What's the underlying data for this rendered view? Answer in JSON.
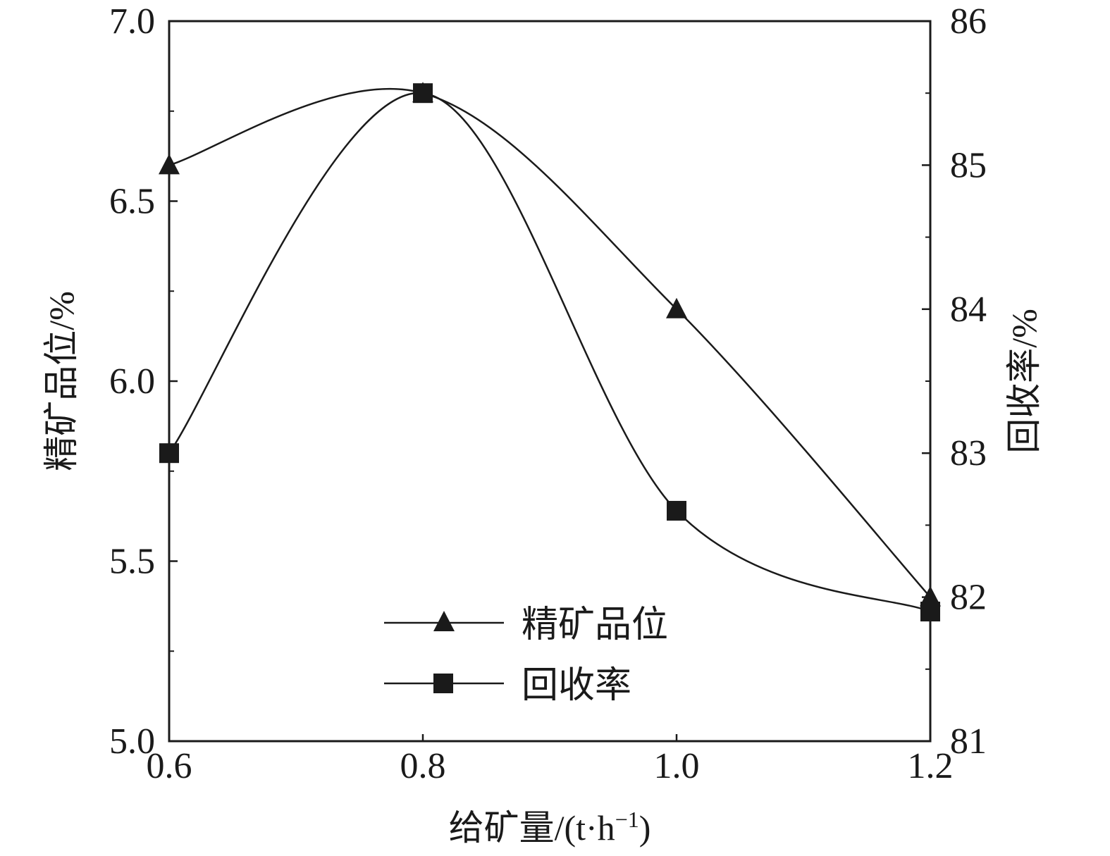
{
  "chart_data": {
    "type": "line",
    "x": [
      0.6,
      0.8,
      1.0,
      1.2
    ],
    "xlabel": "给矿量/(t·h",
    "xlabel_sup": "−1",
    "xlabel_tail": ")",
    "xlim": [
      0.6,
      1.2
    ],
    "xticks": [
      "0.6",
      "0.8",
      "1.0",
      "1.2"
    ],
    "ylabel_left": "精矿品位/%",
    "ylim_left": [
      5.0,
      7.0
    ],
    "yticks_left": [
      "5.0",
      "5.5",
      "6.0",
      "6.5",
      "7.0"
    ],
    "ylabel_right": "回收率/%",
    "ylim_right": [
      81,
      86
    ],
    "yticks_right": [
      "81",
      "82",
      "83",
      "84",
      "85",
      "86"
    ],
    "grid": false,
    "legend_position": "bottom-center",
    "series": [
      {
        "name": "精矿品位",
        "axis": "left",
        "marker": "triangle",
        "values": [
          6.6,
          6.8,
          6.2,
          5.4
        ]
      },
      {
        "name": "回收率",
        "axis": "right",
        "marker": "square",
        "values": [
          83.0,
          85.5,
          82.6,
          81.9
        ]
      }
    ],
    "line_color": "#1a1a1a"
  }
}
